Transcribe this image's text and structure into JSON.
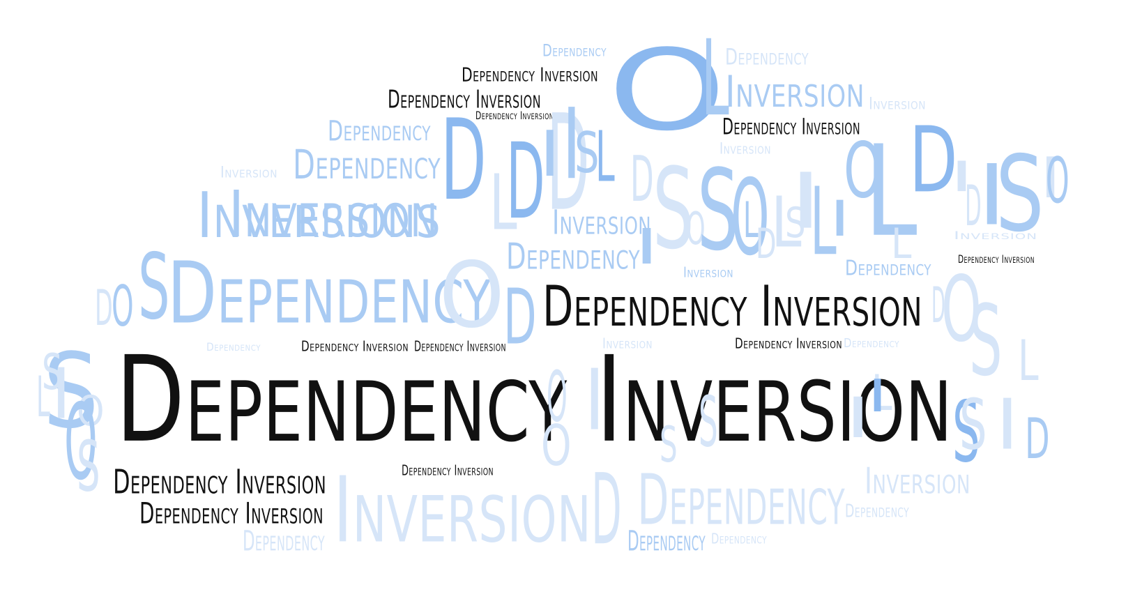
{
  "colors": {
    "black": "#111111",
    "blue_dark": "#8bb8ef",
    "blue_mid": "#a9cbf3",
    "blue_light": "#d6e5f8"
  },
  "words": [
    {
      "id": "w1",
      "text": "Dependency Inversion",
      "color": "black"
    },
    {
      "id": "w2",
      "text": "Dependency Inversion",
      "color": "black"
    },
    {
      "id": "w3",
      "text": "Dependency Inversion",
      "color": "black"
    },
    {
      "id": "w4",
      "text": "Dependency Inversion",
      "color": "black"
    },
    {
      "id": "w5",
      "text": "Dependency Inversion",
      "color": "black"
    },
    {
      "id": "w6",
      "text": "Dependency Inversion",
      "color": "black"
    },
    {
      "id": "w7",
      "text": "Dependency Inversion",
      "color": "black"
    },
    {
      "id": "w8",
      "text": "Dependency Inversion",
      "color": "black"
    },
    {
      "id": "w9",
      "text": "Dependency Inversion",
      "color": "black"
    },
    {
      "id": "w10",
      "text": "Dependency Inversion",
      "color": "black"
    },
    {
      "id": "w11",
      "text": "Dependency Inversion",
      "color": "black"
    },
    {
      "id": "w12",
      "text": "Dependency Inversion",
      "color": "black"
    },
    {
      "id": "w13",
      "text": "Dependency Inversion",
      "color": "black"
    },
    {
      "id": "w14",
      "text": "Dependency",
      "color": "blue_mid"
    },
    {
      "id": "w15",
      "text": "Inversion",
      "color": "blue_mid"
    },
    {
      "id": "w16",
      "text": "Inversion",
      "color": "blue_mid"
    },
    {
      "id": "w17",
      "text": "Dependency",
      "color": "blue_mid"
    },
    {
      "id": "w18",
      "text": "Dependency",
      "color": "blue_mid"
    },
    {
      "id": "w19",
      "text": "Inversion",
      "color": "blue_light"
    },
    {
      "id": "w20",
      "text": "Inversions",
      "color": "blue_mid"
    },
    {
      "id": "w21",
      "text": "Dependency",
      "color": "blue_mid"
    },
    {
      "id": "w22",
      "text": "Dependency",
      "color": "blue_mid"
    },
    {
      "id": "w23",
      "text": "Inversion",
      "color": "blue_mid"
    },
    {
      "id": "w24",
      "text": "Dependency",
      "color": "blue_mid"
    },
    {
      "id": "w25",
      "text": "Inversion",
      "color": "blue_light"
    },
    {
      "id": "w26",
      "text": "Dependency",
      "color": "blue_light"
    },
    {
      "id": "w27",
      "text": "Inversion",
      "color": "blue_light"
    },
    {
      "id": "w28",
      "text": "Dependency",
      "color": "blue_light"
    },
    {
      "id": "w29",
      "text": "Inversion",
      "color": "blue_light"
    },
    {
      "id": "w30",
      "text": "Inversion",
      "color": "blue_mid"
    },
    {
      "id": "w31",
      "text": "Dependency",
      "color": "blue_light"
    },
    {
      "id": "w32",
      "text": "Dependency",
      "color": "blue_light"
    },
    {
      "id": "w33",
      "text": "Inversion",
      "color": "blue_light"
    },
    {
      "id": "w34",
      "text": "Dependency",
      "color": "blue_light"
    },
    {
      "id": "w35",
      "text": "Dependency",
      "color": "blue_light"
    },
    {
      "id": "w36",
      "text": "Inversion",
      "color": "blue_light"
    },
    {
      "id": "w37",
      "text": "Dependency",
      "color": "blue_light"
    },
    {
      "id": "w38",
      "text": "Dependency",
      "color": "blue_mid"
    },
    {
      "id": "w39",
      "text": "Inversion",
      "color": "blue_light"
    },
    {
      "id": "l1",
      "text": "D",
      "color": "blue_dark"
    },
    {
      "id": "l2",
      "text": "O",
      "color": "blue_dark"
    },
    {
      "id": "l3",
      "text": "L",
      "color": "blue_mid"
    },
    {
      "id": "l4",
      "text": "D",
      "color": "blue_dark"
    },
    {
      "id": "l5",
      "text": "L",
      "color": "blue_light"
    },
    {
      "id": "l6",
      "text": "D",
      "color": "blue_light"
    },
    {
      "id": "l7",
      "text": "I",
      "color": "blue_mid"
    },
    {
      "id": "l8",
      "text": "I",
      "color": "blue_mid"
    },
    {
      "id": "l9",
      "text": "L",
      "color": "blue_dark"
    },
    {
      "id": "l10",
      "text": "S",
      "color": "blue_mid"
    },
    {
      "id": "l11",
      "text": "D",
      "color": "blue_light"
    },
    {
      "id": "l12",
      "text": "S",
      "color": "blue_light"
    },
    {
      "id": "l13",
      "text": "O",
      "color": "blue_light"
    },
    {
      "id": "l14",
      "text": "S",
      "color": "blue_mid"
    },
    {
      "id": "l15",
      "text": "O",
      "color": "blue_mid"
    },
    {
      "id": "l16",
      "text": "L",
      "color": "blue_mid"
    },
    {
      "id": "l17",
      "text": "L",
      "color": "blue_light"
    },
    {
      "id": "l18",
      "text": "I",
      "color": "blue_light"
    },
    {
      "id": "l19",
      "text": "L",
      "color": "blue_mid"
    },
    {
      "id": "l20",
      "text": "O",
      "color": "blue_mid"
    },
    {
      "id": "l21",
      "text": "L",
      "color": "blue_mid"
    },
    {
      "id": "l22",
      "text": "D",
      "color": "blue_dark"
    },
    {
      "id": "l23",
      "text": "I",
      "color": "blue_light"
    },
    {
      "id": "l24",
      "text": "D",
      "color": "blue_light"
    },
    {
      "id": "l25",
      "text": "I",
      "color": "blue_mid"
    },
    {
      "id": "l26",
      "text": "S",
      "color": "blue_mid"
    },
    {
      "id": "l27",
      "text": "I",
      "color": "blue_light"
    },
    {
      "id": "l28",
      "text": "O",
      "color": "blue_mid"
    },
    {
      "id": "l29",
      "text": "D",
      "color": "blue_light"
    },
    {
      "id": "l30",
      "text": "O",
      "color": "blue_light"
    },
    {
      "id": "l31",
      "text": "S",
      "color": "blue_light"
    },
    {
      "id": "l32",
      "text": "D",
      "color": "blue_light"
    },
    {
      "id": "l33",
      "text": "O",
      "color": "blue_mid"
    },
    {
      "id": "l34",
      "text": "S",
      "color": "blue_mid"
    },
    {
      "id": "l35",
      "text": "O",
      "color": "blue_light"
    },
    {
      "id": "l36",
      "text": "D",
      "color": "blue_mid"
    },
    {
      "id": "l37",
      "text": "S",
      "color": "blue_mid"
    },
    {
      "id": "l38",
      "text": "O",
      "color": "blue_light"
    },
    {
      "id": "l39",
      "text": "O",
      "color": "blue_mid"
    },
    {
      "id": "l40",
      "text": "S",
      "color": "blue_light"
    },
    {
      "id": "l41",
      "text": "O",
      "color": "blue_light"
    },
    {
      "id": "l42",
      "text": "I",
      "color": "blue_light"
    },
    {
      "id": "l43",
      "text": "O",
      "color": "blue_light"
    },
    {
      "id": "l44",
      "text": "S",
      "color": "blue_light"
    },
    {
      "id": "l45",
      "text": "S",
      "color": "blue_light"
    },
    {
      "id": "l46",
      "text": "I",
      "color": "blue_light"
    },
    {
      "id": "l47",
      "text": "L",
      "color": "blue_light"
    },
    {
      "id": "l48",
      "text": "I",
      "color": "blue_dark"
    },
    {
      "id": "l49",
      "text": "S",
      "color": "blue_dark"
    },
    {
      "id": "l50",
      "text": "L",
      "color": "blue_light"
    },
    {
      "id": "l51",
      "text": "S",
      "color": "blue_light"
    },
    {
      "id": "l52",
      "text": "I",
      "color": "blue_light"
    },
    {
      "id": "l53",
      "text": "D",
      "color": "blue_mid"
    },
    {
      "id": "l54",
      "text": "D",
      "color": "blue_light"
    },
    {
      "id": "l55",
      "text": "L",
      "color": "blue_light"
    },
    {
      "id": "l56",
      "text": "I",
      "color": "blue_light"
    },
    {
      "id": "l57",
      "text": "S",
      "color": "blue_light"
    },
    {
      "id": "l58",
      "text": "I",
      "color": "blue_mid"
    },
    {
      "id": "l59",
      "text": "D",
      "color": "blue_light"
    },
    {
      "id": "l60",
      "text": "S",
      "color": "blue_light"
    },
    {
      "id": "l61",
      "text": "I",
      "color": "blue_mid"
    },
    {
      "id": "l62",
      "text": "L",
      "color": "blue_light"
    }
  ]
}
